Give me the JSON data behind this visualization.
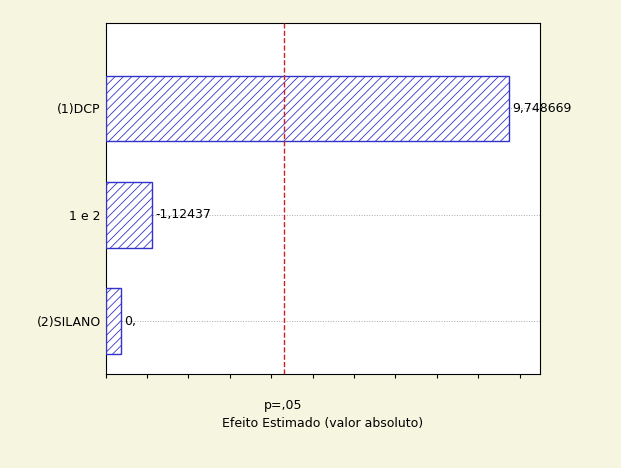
{
  "categories": [
    "(2)SILANO",
    "1 e 2",
    "(1)DCP"
  ],
  "values": [
    0.38,
    1.12437,
    9.748669
  ],
  "labels": [
    "0,",
    "-1,12437",
    "9,748669"
  ],
  "bar_color": "#3333cc",
  "hatch": "////",
  "p05_value": 4.3,
  "p05_label": "p=,05",
  "xlabel": "Efeito Estimado (valor absoluto)",
  "xlim": [
    0,
    10.5
  ],
  "ylim": [
    -0.5,
    2.8
  ],
  "background_color": "#f5f5e0",
  "plot_bg_color": "#ffffff",
  "grid_color": "#aaaaaa",
  "dashed_color": "#cc2222",
  "label_fontsize": 9,
  "tick_fontsize": 9,
  "xlabel_fontsize": 9,
  "bar_height": 0.62
}
